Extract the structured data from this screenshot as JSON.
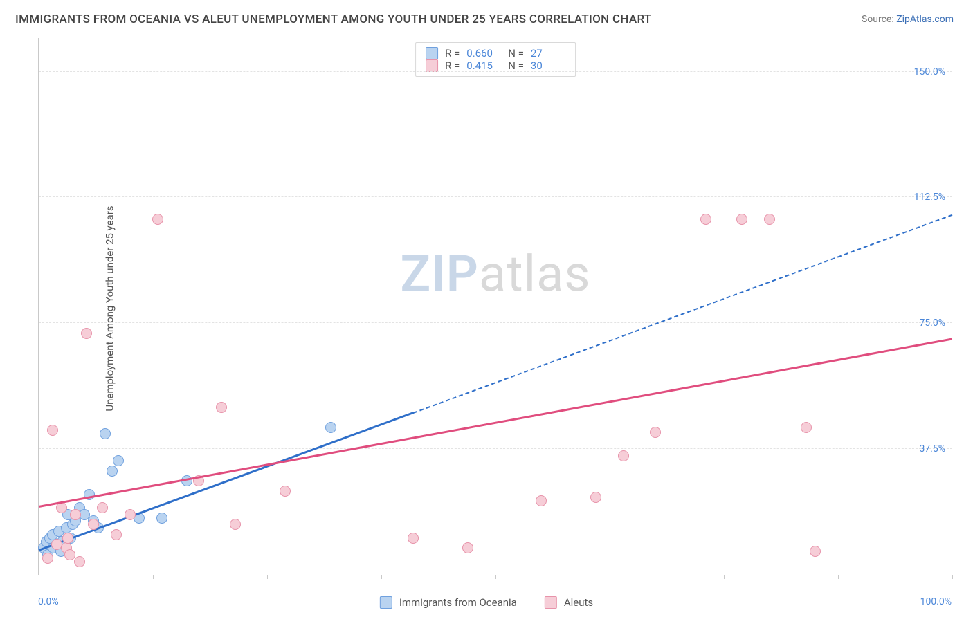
{
  "title": "IMMIGRANTS FROM OCEANIA VS ALEUT UNEMPLOYMENT AMONG YOUTH UNDER 25 YEARS CORRELATION CHART",
  "source_prefix": "Source: ",
  "source_link": "ZipAtlas.com",
  "ylabel": "Unemployment Among Youth under 25 years",
  "watermark": {
    "part1": "ZIP",
    "part2": "atlas"
  },
  "chart": {
    "type": "scatter",
    "background_color": "#ffffff",
    "grid_color": "#e3e3e3",
    "axis_color": "#c9c9c9",
    "tick_label_color": "#4a86d8",
    "text_color": "#555555",
    "xlim": [
      0,
      100
    ],
    "ylim": [
      0,
      160
    ],
    "x_ticks": [
      0,
      12.5,
      25,
      37.5,
      50,
      62.5,
      75,
      87.5,
      100
    ],
    "x_tick_labels": {
      "0": "0.0%",
      "100": "100.0%"
    },
    "y_gridlines": [
      37.5,
      75.0,
      112.5,
      150.0
    ],
    "y_tick_labels": [
      "37.5%",
      "75.0%",
      "112.5%",
      "150.0%"
    ],
    "marker_radius": 8,
    "marker_border_width": 1.2,
    "line_width_solid": 3,
    "line_width_dashed": 2,
    "series": [
      {
        "id": "oceania",
        "label": "Immigrants from Oceania",
        "fill": "#b9d3f0",
        "stroke": "#6fa0de",
        "line_color": "#2f6fc9",
        "R": "0.660",
        "N": "27",
        "trend_solid": {
          "x1": 0,
          "y1": 7,
          "x2": 41,
          "y2": 48
        },
        "trend_dashed": {
          "x1": 41,
          "y1": 48,
          "x2": 100,
          "y2": 107
        },
        "points": [
          [
            0.5,
            8
          ],
          [
            0.8,
            10
          ],
          [
            1.0,
            6
          ],
          [
            1.2,
            11
          ],
          [
            1.5,
            12
          ],
          [
            1.6,
            8
          ],
          [
            2.0,
            9
          ],
          [
            2.2,
            13
          ],
          [
            2.4,
            7
          ],
          [
            2.6,
            10
          ],
          [
            3.0,
            14
          ],
          [
            3.2,
            18
          ],
          [
            3.5,
            11
          ],
          [
            3.7,
            15
          ],
          [
            4.0,
            16
          ],
          [
            4.5,
            20
          ],
          [
            5.0,
            18
          ],
          [
            5.5,
            24
          ],
          [
            6.0,
            16
          ],
          [
            6.5,
            14
          ],
          [
            7.3,
            42
          ],
          [
            8.0,
            31
          ],
          [
            8.7,
            34
          ],
          [
            11.0,
            17
          ],
          [
            13.5,
            17
          ],
          [
            16.2,
            28
          ],
          [
            32.0,
            44
          ]
        ]
      },
      {
        "id": "aleuts",
        "label": "Aleuts",
        "fill": "#f6cdd7",
        "stroke": "#e793aa",
        "line_color": "#e04d7e",
        "R": "0.415",
        "N": "30",
        "trend_solid": {
          "x1": 0,
          "y1": 20,
          "x2": 100,
          "y2": 70
        },
        "trend_dashed": null,
        "points": [
          [
            1.0,
            5
          ],
          [
            1.5,
            43
          ],
          [
            2.0,
            9
          ],
          [
            2.5,
            20
          ],
          [
            3.0,
            8
          ],
          [
            3.2,
            11
          ],
          [
            3.4,
            6
          ],
          [
            4.0,
            18
          ],
          [
            4.5,
            4
          ],
          [
            5.2,
            72
          ],
          [
            6.0,
            15
          ],
          [
            7.0,
            20
          ],
          [
            8.5,
            12
          ],
          [
            10.0,
            18
          ],
          [
            13.0,
            106
          ],
          [
            17.5,
            28
          ],
          [
            20.0,
            50
          ],
          [
            21.5,
            15
          ],
          [
            27.0,
            25
          ],
          [
            41.0,
            11
          ],
          [
            47.0,
            8
          ],
          [
            55.0,
            22
          ],
          [
            61.0,
            23
          ],
          [
            64.0,
            35.5
          ],
          [
            67.5,
            42.5
          ],
          [
            73.0,
            106
          ],
          [
            77.0,
            106
          ],
          [
            80.0,
            106
          ],
          [
            84.0,
            44
          ],
          [
            85.0,
            7
          ]
        ]
      }
    ],
    "legend_top_labels": {
      "R": "R =",
      "N": "N ="
    }
  }
}
